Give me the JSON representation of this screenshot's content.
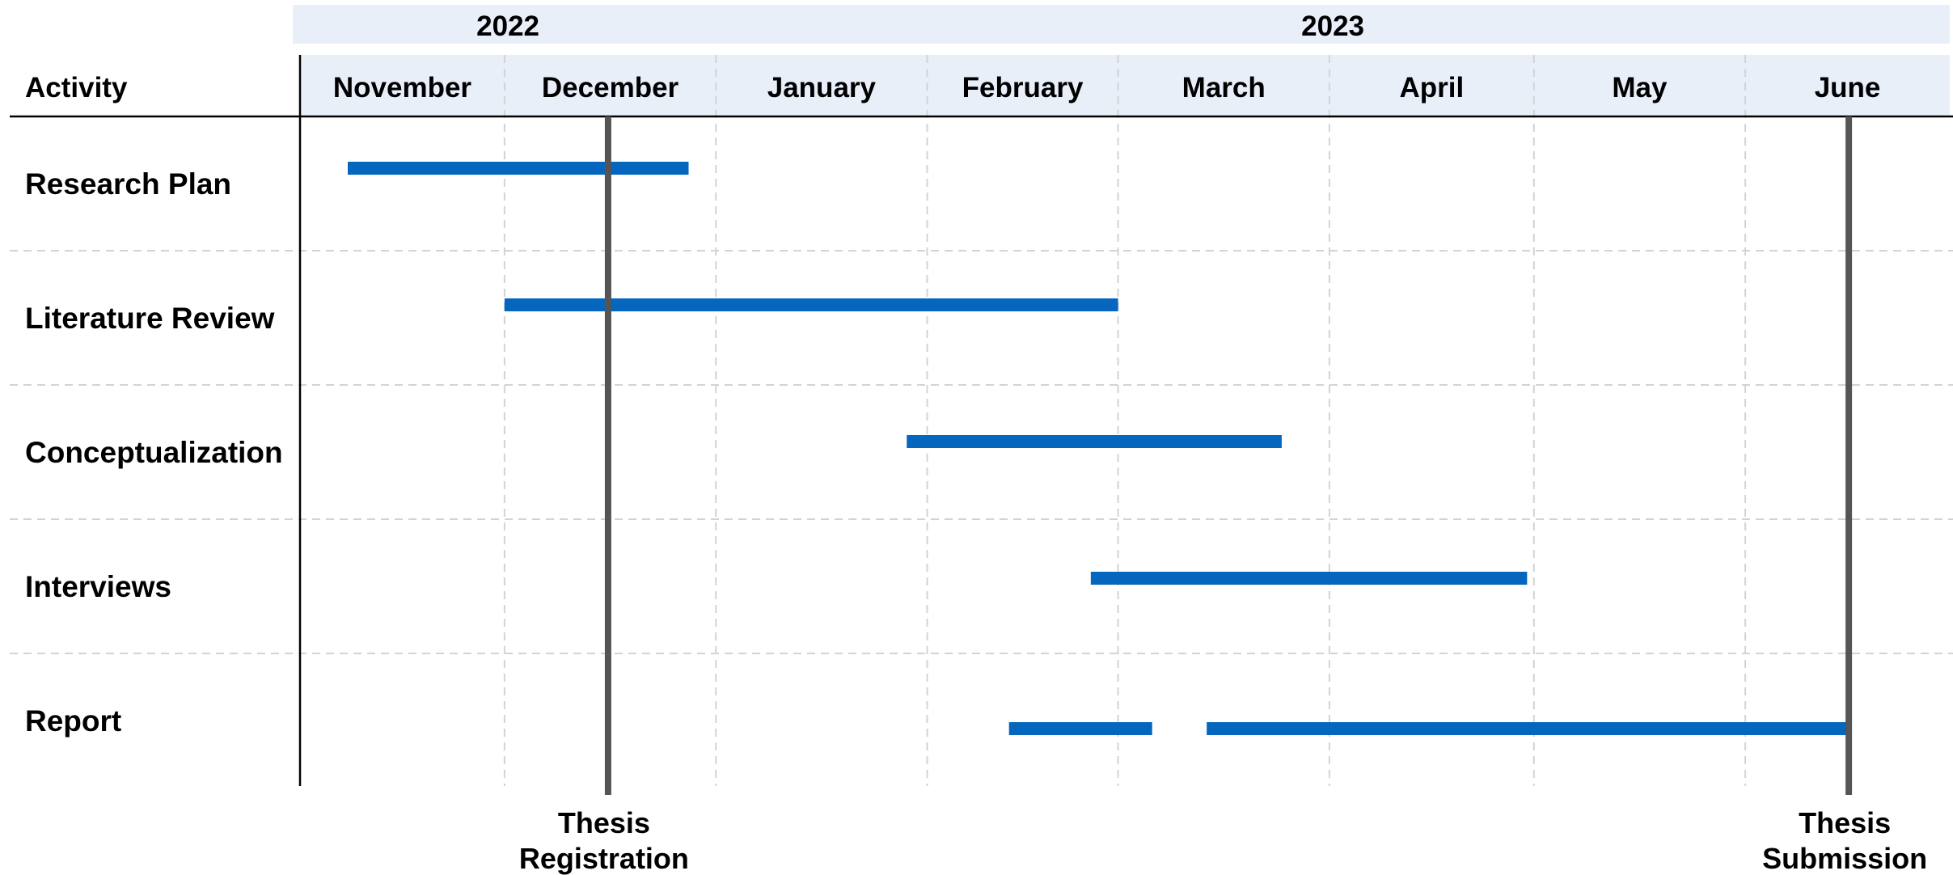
{
  "chart_data": {
    "type": "gantt",
    "header": {
      "activity_label": "Activity"
    },
    "years": [
      {
        "label": "2022",
        "start": "2022-11-01",
        "end": "2022-12-31"
      },
      {
        "label": "2023",
        "start": "2023-01-01",
        "end": "2023-06-30"
      }
    ],
    "months": [
      {
        "label": "November",
        "start": "2022-11-01"
      },
      {
        "label": "December",
        "start": "2022-12-01"
      },
      {
        "label": "January",
        "start": "2023-01-01"
      },
      {
        "label": "February",
        "start": "2023-02-01"
      },
      {
        "label": "March",
        "start": "2023-03-01"
      },
      {
        "label": "April",
        "start": "2023-04-01"
      },
      {
        "label": "May",
        "start": "2023-05-01"
      },
      {
        "label": "June",
        "start": "2023-06-01"
      }
    ],
    "range": [
      "2022-11-01",
      "2023-06-30"
    ],
    "tasks": [
      {
        "name": "Research Plan",
        "segments": [
          {
            "start": "2022-11-08",
            "end": "2022-12-27"
          }
        ]
      },
      {
        "name": "Literature Review",
        "segments": [
          {
            "start": "2022-12-01",
            "end": "2023-02-28"
          }
        ]
      },
      {
        "name": "Conceptualization",
        "segments": [
          {
            "start": "2023-01-29",
            "end": "2023-03-24"
          }
        ]
      },
      {
        "name": "Interviews",
        "segments": [
          {
            "start": "2023-02-25",
            "end": "2023-04-29"
          }
        ]
      },
      {
        "name": "Report",
        "segments": [
          {
            "start": "2023-02-13",
            "end": "2023-03-05"
          },
          {
            "start": "2023-03-14",
            "end": "2023-06-15"
          }
        ]
      }
    ],
    "milestones": [
      {
        "lines": [
          "Thesis",
          "Registration"
        ],
        "date": "2022-12-15"
      },
      {
        "lines": [
          "Thesis",
          "Submission"
        ],
        "date": "2023-06-15"
      }
    ],
    "colors": {
      "bar": "#0566BD",
      "header_band": "#E8EFF9",
      "milestone_line": "#555555",
      "grid": "#D3D3D3",
      "axis": "#000000"
    },
    "grid": true
  }
}
